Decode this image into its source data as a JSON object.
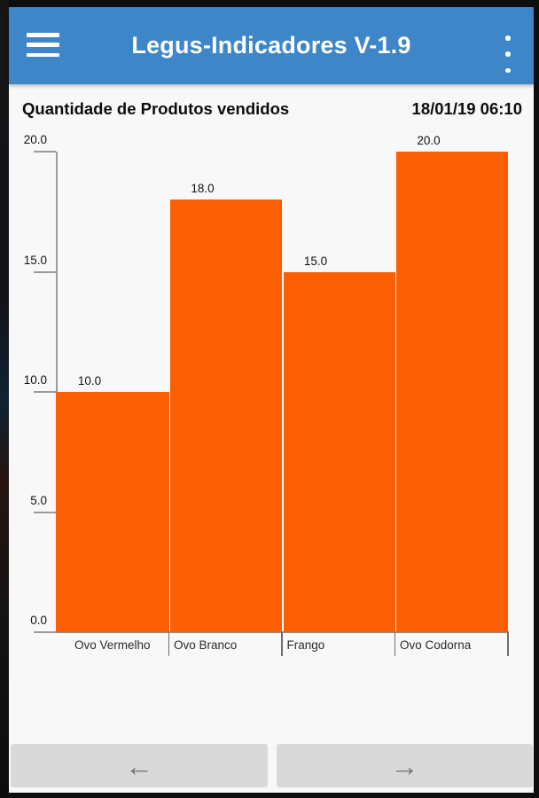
{
  "header": {
    "title": "Legus-Indicadores V-1.9"
  },
  "chart_header": {
    "title": "Quantidade de Produtos vendidos",
    "datetime": "18/01/19 06:10"
  },
  "chart_data": {
    "type": "bar",
    "title": "Quantidade de Produtos vendidos",
    "timestamp": "18/01/19 06:10",
    "categories": [
      "Ovo Vermelho",
      "Ovo Branco",
      "Frango",
      "Ovo Codorna"
    ],
    "values": [
      10.0,
      18.0,
      15.0,
      20.0
    ],
    "value_labels": [
      "10.0",
      "18.0",
      "15.0",
      "20.0"
    ],
    "y_axis": {
      "min": 0,
      "max": 20,
      "ticks": [
        20.0,
        15.0,
        10.0,
        5.0,
        0.0
      ],
      "tick_labels": [
        "20.0",
        "15.0",
        "10.0",
        "5.0",
        "0.0"
      ]
    },
    "bar_color": "#FC5E03",
    "grid": false,
    "legend": "none"
  },
  "footer": {
    "prev_icon": "←",
    "next_icon": "→"
  },
  "colors": {
    "header_bg": "#3E86C7",
    "bar": "#FC5E03",
    "button_bg": "#D9D9D9",
    "arrow": "#757575"
  }
}
